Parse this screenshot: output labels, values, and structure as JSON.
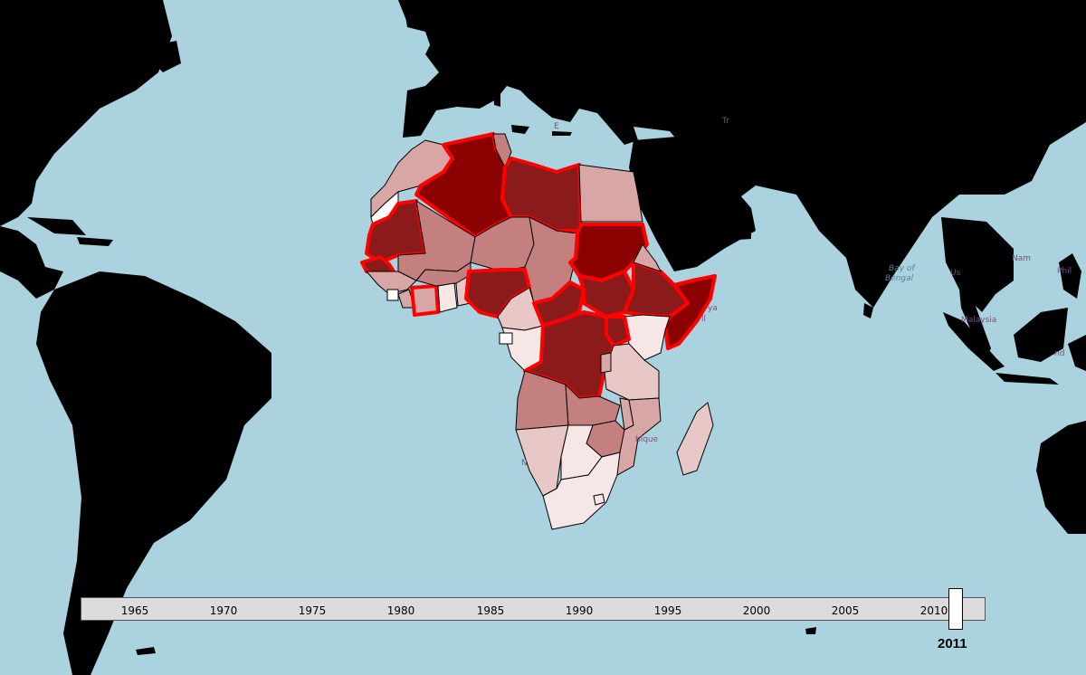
{
  "timeline": {
    "ticks": [
      "1965",
      "1970",
      "1975",
      "1980",
      "1985",
      "1990",
      "1995",
      "2000",
      "2005",
      "2010"
    ],
    "selected_year": "2011"
  },
  "basemap_labels": {
    "tripoli_fragment": "Tr",
    "benghazi_fragment": "E",
    "kenya_fragment": "ya",
    "nairobi_fragment": "ll",
    "mozambique_fragment": "bique",
    "namibia_fragment": "N",
    "bay_of_bengal": [
      "Bay of",
      "Bengal"
    ],
    "myanmar_fragment": "Us",
    "vietnam_fragment": "Nam",
    "philippines_fragment": "Phil",
    "malaysia_fragment": "Malaysia",
    "indonesia_fragment": "nd"
  },
  "colors": {
    "ocean": "#abd3df",
    "land": "#000000",
    "highlight_border": "#ff0000",
    "level_0": "#ffffff",
    "level_1": "#f7e6e6",
    "level_2": "#e8c7c7",
    "level_3": "#d9a6a6",
    "level_4": "#c47f7f",
    "level_5": "#8b1a1a",
    "level_6": "#8b0000"
  },
  "countries": [
    {
      "id": "morocco",
      "level": 3,
      "highlight": false
    },
    {
      "id": "western-sahara",
      "level": 0,
      "highlight": false
    },
    {
      "id": "algeria",
      "level": 6,
      "highlight": true
    },
    {
      "id": "tunisia",
      "level": 4,
      "highlight": false
    },
    {
      "id": "libya",
      "level": 5,
      "highlight": true
    },
    {
      "id": "egypt",
      "level": 3,
      "highlight": false
    },
    {
      "id": "mauritania",
      "level": 5,
      "highlight": true
    },
    {
      "id": "mali",
      "level": 4,
      "highlight": false
    },
    {
      "id": "niger",
      "level": 4,
      "highlight": false
    },
    {
      "id": "chad",
      "level": 4,
      "highlight": false
    },
    {
      "id": "sudan",
      "level": 6,
      "highlight": true
    },
    {
      "id": "senegal",
      "level": 5,
      "highlight": true
    },
    {
      "id": "guinea",
      "level": 3,
      "highlight": false
    },
    {
      "id": "sierra-leone",
      "level": 0,
      "highlight": false
    },
    {
      "id": "liberia",
      "level": 3,
      "highlight": false
    },
    {
      "id": "cote-divoire",
      "level": 3,
      "highlight": true
    },
    {
      "id": "burkina-faso",
      "level": 4,
      "highlight": false
    },
    {
      "id": "ghana",
      "level": 1,
      "highlight": false
    },
    {
      "id": "togo-benin",
      "level": 2,
      "highlight": false
    },
    {
      "id": "nigeria",
      "level": 5,
      "highlight": true
    },
    {
      "id": "cameroon",
      "level": 2,
      "highlight": false
    },
    {
      "id": "central-african-republic",
      "level": 5,
      "highlight": true
    },
    {
      "id": "south-sudan",
      "level": 5,
      "highlight": true
    },
    {
      "id": "ethiopia",
      "level": 5,
      "highlight": true
    },
    {
      "id": "eritrea",
      "level": 3,
      "highlight": false
    },
    {
      "id": "somalia",
      "level": 6,
      "highlight": true
    },
    {
      "id": "kenya",
      "level": 1,
      "highlight": false
    },
    {
      "id": "uganda",
      "level": 5,
      "highlight": true
    },
    {
      "id": "gabon-congo",
      "level": 1,
      "highlight": false
    },
    {
      "id": "equatorial-guinea",
      "level": 0,
      "highlight": false
    },
    {
      "id": "dr-congo",
      "level": 5,
      "highlight": true
    },
    {
      "id": "tanzania",
      "level": 2,
      "highlight": false
    },
    {
      "id": "rwanda-burundi",
      "level": 3,
      "highlight": false
    },
    {
      "id": "angola",
      "level": 4,
      "highlight": false
    },
    {
      "id": "zambia",
      "level": 4,
      "highlight": false
    },
    {
      "id": "malawi",
      "level": 3,
      "highlight": false
    },
    {
      "id": "mozambique",
      "level": 3,
      "highlight": false
    },
    {
      "id": "zimbabwe",
      "level": 4,
      "highlight": false
    },
    {
      "id": "namibia",
      "level": 2,
      "highlight": false
    },
    {
      "id": "botswana",
      "level": 1,
      "highlight": false
    },
    {
      "id": "south-africa",
      "level": 1,
      "highlight": false
    },
    {
      "id": "lesotho",
      "level": 1,
      "highlight": false
    },
    {
      "id": "madagascar",
      "level": 2,
      "highlight": false
    }
  ]
}
